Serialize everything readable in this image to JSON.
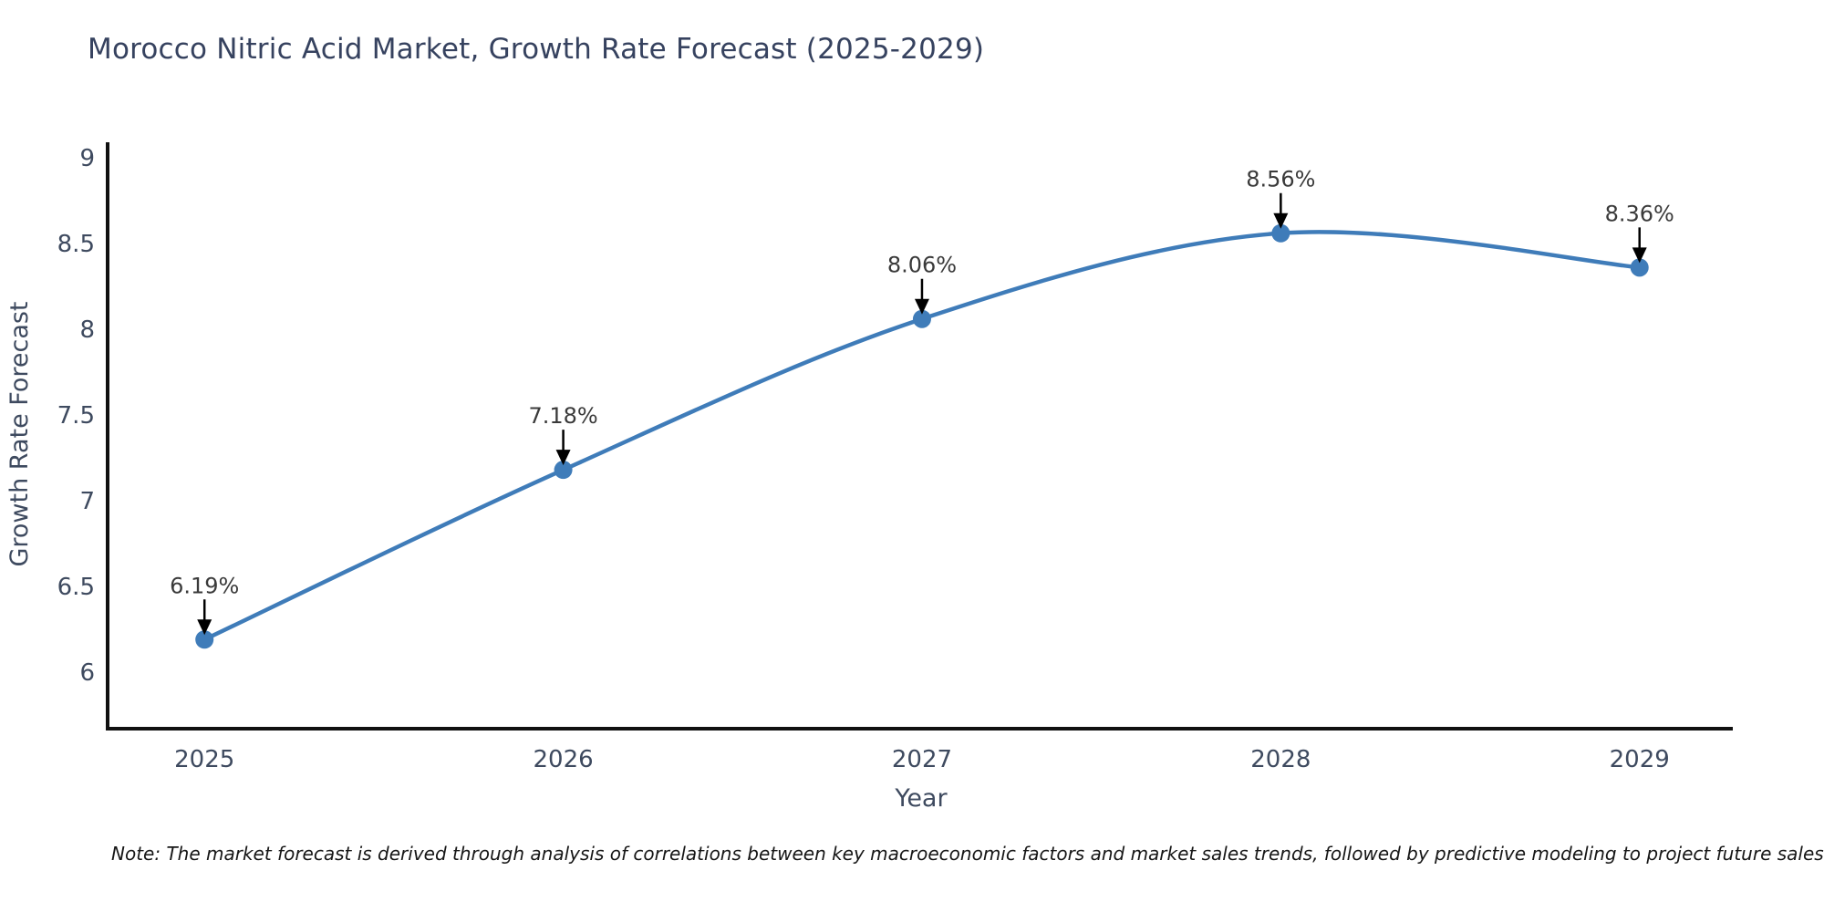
{
  "title": "Morocco Nitric Acid Market, Growth Rate Forecast (2025-2029)",
  "note": "Note: The market forecast is derived through analysis of correlations between key macroeconomic factors and market sales trends, followed by predictive modeling to project future sales",
  "chart_data": {
    "type": "line",
    "title": "Morocco Nitric Acid Market, Growth Rate Forecast (2025-2029)",
    "x": [
      2025,
      2026,
      2027,
      2028,
      2029
    ],
    "series": [
      {
        "name": "Growth Rate Forecast",
        "values": [
          6.19,
          7.18,
          8.06,
          8.56,
          8.36
        ],
        "unit": "%"
      }
    ],
    "point_labels": [
      "6.19%",
      "7.18%",
      "8.06%",
      "8.56%",
      "8.36%"
    ],
    "xlabel": "Year",
    "ylabel": "Growth Rate Forecast",
    "x_ticks": [
      "2025",
      "2026",
      "2027",
      "2028",
      "2029"
    ],
    "y_ticks": [
      "6",
      "6.5",
      "7",
      "7.5",
      "8",
      "8.5",
      "9"
    ],
    "y_tick_values": [
      6,
      6.5,
      7,
      7.5,
      8,
      8.5,
      9
    ],
    "xlim": [
      2024.73,
      2029.26
    ],
    "ylim": [
      5.67,
      9.08
    ],
    "grid": false,
    "legend_position": "none",
    "curve": "spline",
    "annotation_style": "label-above-with-down-arrow",
    "colors": {
      "line": "#3f7cb9",
      "marker": "#3f7cb9",
      "axis": "#111111",
      "tick_labels": "#3e4a5f",
      "axis_labels": "#3e4a5f",
      "title": "#36425f",
      "annotation_text": "#3a3a3a",
      "annotation_arrow": "#000000",
      "background": "#ffffff"
    }
  }
}
